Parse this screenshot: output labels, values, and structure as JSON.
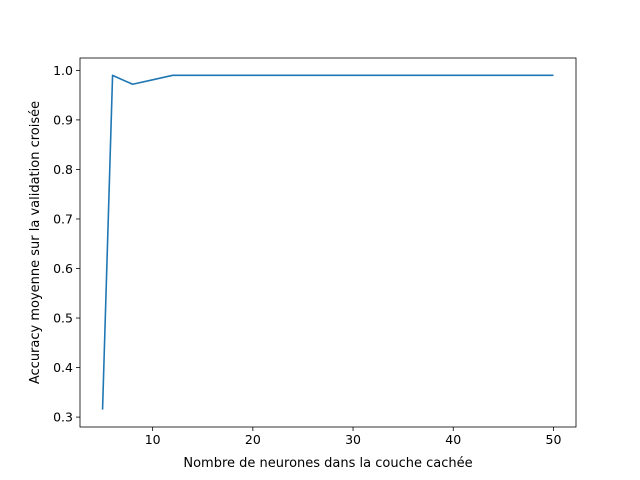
{
  "chart_data": {
    "type": "line",
    "xlabel": "Nombre de neurones dans la couche cachée",
    "ylabel": "Accuracy moyenne sur la validation croisée",
    "xlim": [
      2.75,
      52.25
    ],
    "ylim": [
      0.28,
      1.025
    ],
    "xticks": [
      10,
      20,
      30,
      40,
      50
    ],
    "yticks": [
      0.3,
      0.4,
      0.5,
      0.6,
      0.7,
      0.8,
      0.9,
      1.0
    ],
    "xtick_labels": [
      "10",
      "20",
      "30",
      "40",
      "50"
    ],
    "ytick_labels": [
      "0.3",
      "0.4",
      "0.5",
      "0.6",
      "0.7",
      "0.8",
      "0.9",
      "1.0"
    ],
    "grid": false,
    "series": [
      {
        "color": "#1f77b4",
        "x": [
          5,
          6,
          8,
          10,
          12,
          15,
          20,
          25,
          30,
          35,
          40,
          45,
          50
        ],
        "y": [
          0.315,
          0.99,
          0.972,
          0.981,
          0.99,
          0.99,
          0.99,
          0.99,
          0.99,
          0.99,
          0.99,
          0.99,
          0.99
        ]
      }
    ]
  }
}
